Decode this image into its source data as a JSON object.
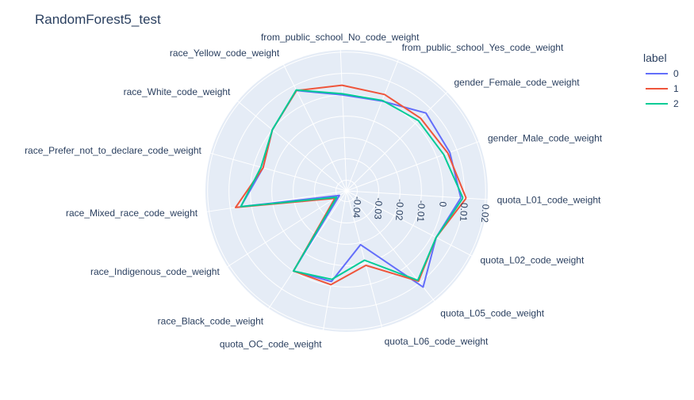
{
  "chart_data": {
    "type": "radar",
    "title": "RandomForest5_test",
    "legend": {
      "title": "label",
      "placement": "top-right"
    },
    "radial_range": [
      -0.045,
      0.021
    ],
    "radial_ticks": [
      -0.04,
      -0.03,
      -0.02,
      -0.01,
      0,
      0.01,
      0.02
    ],
    "radial_tick_labels": [
      "-0.04",
      "-0.03",
      "-0.02",
      "-0.01",
      "0",
      "0.01",
      "0.02"
    ],
    "categories": [
      "quota_L01_code_weight",
      "gender_Male_code_weight",
      "gender_Female_code_weight",
      "from_public_school_Yes_code_weight",
      "from_public_school_No_code_weight",
      "race_Yellow_code_weight",
      "race_White_code_weight",
      "race_Prefer_not_to_declare_code_weight",
      "race_Mixed_race_code_weight",
      "race_Indigenous_code_weight",
      "race_Black_code_weight",
      "quota_OC_code_weight",
      "quota_L06_code_weight",
      "quota_L05_code_weight",
      "quota_L02_code_weight"
    ],
    "series": [
      {
        "name": "0",
        "color": "#636efa",
        "values": [
          0.0085,
          0.0065,
          0.007,
          0.0002,
          -0.0,
          0.0075,
          -0.0,
          -0.0045,
          0.005,
          -0.041,
          -0.0,
          -0.002,
          -0.019,
          0.0125,
          0.0022
        ]
      },
      {
        "name": "1",
        "color": "#ef553b",
        "values": [
          0.011,
          0.0055,
          0.0035,
          0.0035,
          0.0045,
          0.0075,
          -0.0,
          -0.0045,
          0.0075,
          -0.0385,
          -0.0,
          -0.0005,
          -0.009,
          0.009,
          0.0022
        ]
      },
      {
        "name": "2",
        "color": "#00cc96",
        "values": [
          0.0095,
          0.0035,
          0.002,
          0.0005,
          0.0005,
          0.0078,
          -0.0,
          -0.0035,
          0.005,
          -0.0395,
          -0.0,
          -0.003,
          -0.0115,
          0.0085,
          0.0022
        ]
      }
    ]
  }
}
